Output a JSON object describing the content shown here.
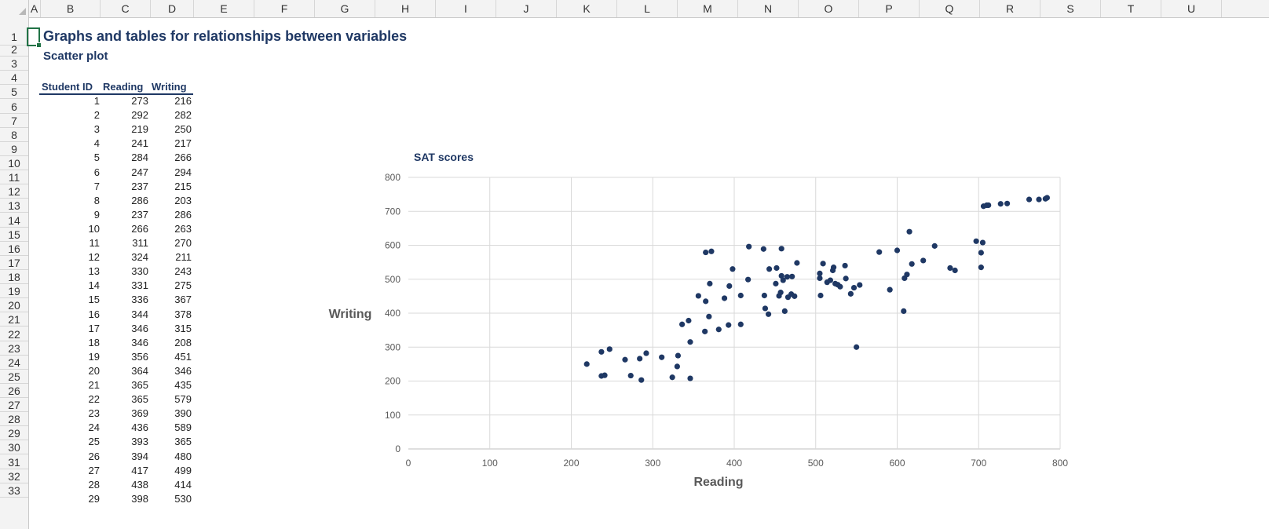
{
  "spreadsheet": {
    "columns": [
      "A",
      "B",
      "C",
      "D",
      "E",
      "F",
      "G",
      "H",
      "I",
      "J",
      "K",
      "L",
      "M",
      "N",
      "O",
      "P",
      "Q",
      "R",
      "S",
      "T",
      "U"
    ],
    "rows": [
      "1",
      "2",
      "3",
      "4",
      "5",
      "6",
      "7",
      "8",
      "9",
      "10",
      "11",
      "12",
      "13",
      "14",
      "15",
      "16",
      "17",
      "18",
      "19",
      "20",
      "21",
      "22",
      "23",
      "24",
      "25",
      "26",
      "27",
      "28",
      "29",
      "30",
      "31",
      "32",
      "33"
    ],
    "title": "Graphs and tables for relationships between variables",
    "subtitle": "Scatter plot",
    "table": {
      "headers": [
        "Student ID",
        "Reading",
        "Writing"
      ],
      "rows": [
        [
          "1",
          "273",
          "216"
        ],
        [
          "2",
          "292",
          "282"
        ],
        [
          "3",
          "219",
          "250"
        ],
        [
          "4",
          "241",
          "217"
        ],
        [
          "5",
          "284",
          "266"
        ],
        [
          "6",
          "247",
          "294"
        ],
        [
          "7",
          "237",
          "215"
        ],
        [
          "8",
          "286",
          "203"
        ],
        [
          "9",
          "237",
          "286"
        ],
        [
          "10",
          "266",
          "263"
        ],
        [
          "11",
          "311",
          "270"
        ],
        [
          "12",
          "324",
          "211"
        ],
        [
          "13",
          "330",
          "243"
        ],
        [
          "14",
          "331",
          "275"
        ],
        [
          "15",
          "336",
          "367"
        ],
        [
          "16",
          "344",
          "378"
        ],
        [
          "17",
          "346",
          "315"
        ],
        [
          "18",
          "346",
          "208"
        ],
        [
          "19",
          "356",
          "451"
        ],
        [
          "20",
          "364",
          "346"
        ],
        [
          "21",
          "365",
          "435"
        ],
        [
          "22",
          "365",
          "579"
        ],
        [
          "23",
          "369",
          "390"
        ],
        [
          "24",
          "436",
          "589"
        ],
        [
          "25",
          "393",
          "365"
        ],
        [
          "26",
          "394",
          "480"
        ],
        [
          "27",
          "417",
          "499"
        ],
        [
          "28",
          "438",
          "414"
        ],
        [
          "29",
          "398",
          "530"
        ]
      ]
    }
  },
  "chart_data": {
    "type": "scatter",
    "title": "SAT scores",
    "xlabel": "Reading",
    "ylabel": "Writing",
    "xlim": [
      0,
      800
    ],
    "ylim": [
      0,
      800
    ],
    "xticks": [
      "0",
      "100",
      "200",
      "300",
      "400",
      "500",
      "600",
      "700",
      "800"
    ],
    "yticks": [
      "0",
      "100",
      "200",
      "300",
      "400",
      "500",
      "600",
      "700",
      "800"
    ],
    "grid": true,
    "color": "#1f3864",
    "points": [
      [
        273,
        216
      ],
      [
        292,
        282
      ],
      [
        219,
        250
      ],
      [
        241,
        217
      ],
      [
        284,
        266
      ],
      [
        247,
        294
      ],
      [
        237,
        215
      ],
      [
        286,
        203
      ],
      [
        237,
        286
      ],
      [
        266,
        263
      ],
      [
        311,
        270
      ],
      [
        324,
        211
      ],
      [
        330,
        243
      ],
      [
        331,
        275
      ],
      [
        336,
        367
      ],
      [
        344,
        378
      ],
      [
        346,
        315
      ],
      [
        346,
        208
      ],
      [
        356,
        451
      ],
      [
        364,
        346
      ],
      [
        365,
        435
      ],
      [
        365,
        579
      ],
      [
        369,
        390
      ],
      [
        436,
        589
      ],
      [
        393,
        365
      ],
      [
        394,
        480
      ],
      [
        417,
        499
      ],
      [
        438,
        414
      ],
      [
        398,
        530
      ],
      [
        372,
        582
      ],
      [
        370,
        487
      ],
      [
        381,
        352
      ],
      [
        388,
        444
      ],
      [
        408,
        367
      ],
      [
        408,
        452
      ],
      [
        418,
        596
      ],
      [
        437,
        452
      ],
      [
        442,
        397
      ],
      [
        443,
        530
      ],
      [
        451,
        487
      ],
      [
        452,
        533
      ],
      [
        455,
        451
      ],
      [
        457,
        461
      ],
      [
        458,
        510
      ],
      [
        458,
        590
      ],
      [
        460,
        497
      ],
      [
        462,
        406
      ],
      [
        465,
        507
      ],
      [
        466,
        447
      ],
      [
        470,
        456
      ],
      [
        471,
        508
      ],
      [
        474,
        450
      ],
      [
        477,
        548
      ],
      [
        505,
        517
      ],
      [
        505,
        503
      ],
      [
        506,
        452
      ],
      [
        509,
        546
      ],
      [
        514,
        491
      ],
      [
        518,
        497
      ],
      [
        521,
        526
      ],
      [
        522,
        535
      ],
      [
        524,
        487
      ],
      [
        527,
        484
      ],
      [
        530,
        478
      ],
      [
        536,
        540
      ],
      [
        537,
        502
      ],
      [
        543,
        457
      ],
      [
        547,
        475
      ],
      [
        550,
        300
      ],
      [
        554,
        483
      ],
      [
        578,
        580
      ],
      [
        591,
        469
      ],
      [
        600,
        585
      ],
      [
        608,
        406
      ],
      [
        609,
        503
      ],
      [
        612,
        514
      ],
      [
        615,
        640
      ],
      [
        618,
        545
      ],
      [
        632,
        555
      ],
      [
        646,
        598
      ],
      [
        665,
        533
      ],
      [
        671,
        526
      ],
      [
        697,
        612
      ],
      [
        703,
        578
      ],
      [
        703,
        535
      ],
      [
        705,
        608
      ],
      [
        706,
        715
      ],
      [
        710,
        718
      ],
      [
        712,
        718
      ],
      [
        727,
        722
      ],
      [
        735,
        723
      ],
      [
        762,
        735
      ],
      [
        774,
        735
      ],
      [
        782,
        737
      ],
      [
        784,
        740
      ]
    ]
  }
}
